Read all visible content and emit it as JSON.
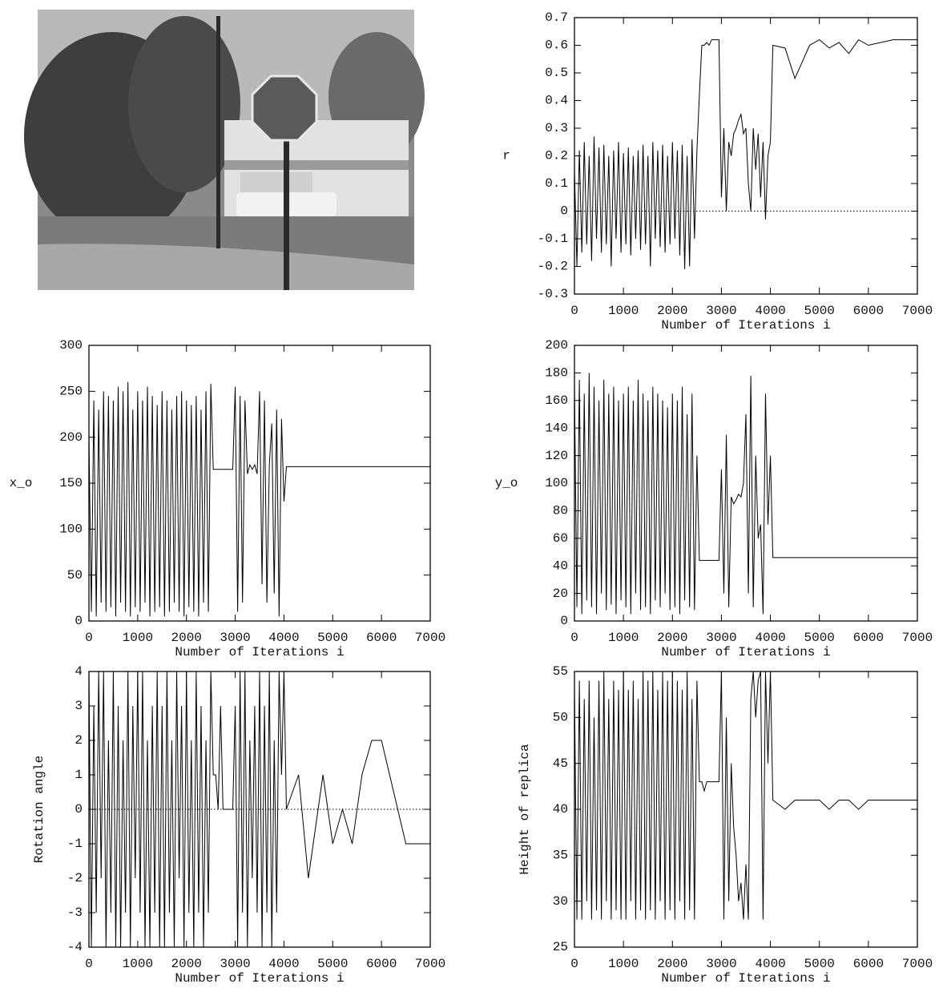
{
  "chart_data": [
    {
      "type": "line",
      "xlabel": "Number of Iterations i",
      "ylabel": "r",
      "zero_line": true,
      "xlim": [
        0,
        7000
      ],
      "xticks": [
        0,
        1000,
        2000,
        3000,
        4000,
        5000,
        6000,
        7000
      ],
      "ylim": [
        -0.3,
        0.7
      ],
      "yticks": [
        -0.3,
        -0.2,
        -0.1,
        0,
        0.1,
        0.2,
        0.3,
        0.4,
        0.5,
        0.6,
        0.7
      ],
      "x": [
        0,
        50,
        100,
        150,
        200,
        250,
        300,
        350,
        400,
        450,
        500,
        550,
        600,
        650,
        700,
        750,
        800,
        850,
        900,
        950,
        1000,
        1050,
        1100,
        1150,
        1200,
        1250,
        1300,
        1350,
        1400,
        1450,
        1500,
        1550,
        1600,
        1650,
        1700,
        1750,
        1800,
        1850,
        1900,
        1950,
        2000,
        2050,
        2100,
        2150,
        2200,
        2250,
        2300,
        2350,
        2400,
        2450,
        2500,
        2550,
        2600,
        2650,
        2700,
        2750,
        2800,
        2850,
        2900,
        2950,
        3000,
        3050,
        3100,
        3150,
        3200,
        3250,
        3300,
        3350,
        3400,
        3450,
        3500,
        3550,
        3600,
        3650,
        3700,
        3750,
        3800,
        3850,
        3900,
        3950,
        4000,
        4050,
        4300,
        4500,
        4800,
        5000,
        5200,
        5400,
        5600,
        5800,
        6000,
        6500,
        7000
      ],
      "series": [
        {
          "color": "#000000",
          "values": [
            0.15,
            -0.2,
            0.22,
            -0.15,
            0.25,
            -0.12,
            0.2,
            -0.18,
            0.27,
            -0.1,
            0.23,
            -0.15,
            0.24,
            -0.12,
            0.2,
            -0.2,
            0.22,
            -0.1,
            0.25,
            -0.15,
            0.21,
            -0.12,
            0.23,
            -0.16,
            0.2,
            -0.1,
            0.22,
            -0.14,
            0.24,
            -0.12,
            0.2,
            -0.2,
            0.25,
            -0.1,
            0.22,
            -0.13,
            0.24,
            -0.15,
            0.2,
            -0.12,
            0.25,
            -0.1,
            0.22,
            -0.16,
            0.24,
            -0.21,
            0.2,
            -0.2,
            0.26,
            -0.1,
            0.22,
            0.42,
            0.6,
            0.6,
            0.61,
            0.6,
            0.62,
            0.62,
            0.62,
            0.62,
            0.05,
            0.3,
            0,
            0.25,
            0.2,
            0.28,
            0.3,
            0.33,
            0.35,
            0.28,
            0.3,
            0.1,
            0,
            0.3,
            0.15,
            0.28,
            0.05,
            0.25,
            -0.03,
            0.2,
            0.25,
            0.6,
            0.59,
            0.48,
            0.6,
            0.62,
            0.59,
            0.61,
            0.57,
            0.62,
            0.6,
            0.62,
            0.62
          ]
        }
      ]
    },
    {
      "type": "line",
      "xlabel": "Number of Iterations i",
      "ylabel": "x_o",
      "xlim": [
        0,
        7000
      ],
      "xticks": [
        0,
        1000,
        2000,
        3000,
        4000,
        5000,
        6000,
        7000
      ],
      "ylim": [
        0,
        300
      ],
      "yticks": [
        0,
        50,
        100,
        150,
        200,
        250,
        300
      ],
      "x": [
        0,
        50,
        100,
        150,
        200,
        250,
        300,
        350,
        400,
        450,
        500,
        550,
        600,
        650,
        700,
        750,
        800,
        850,
        900,
        950,
        1000,
        1050,
        1100,
        1150,
        1200,
        1250,
        1300,
        1350,
        1400,
        1450,
        1500,
        1550,
        1600,
        1650,
        1700,
        1750,
        1800,
        1850,
        1900,
        1950,
        2000,
        2050,
        2100,
        2150,
        2200,
        2250,
        2300,
        2350,
        2400,
        2450,
        2500,
        2550,
        2600,
        2650,
        2700,
        2750,
        2800,
        2850,
        2900,
        2950,
        3000,
        3050,
        3100,
        3150,
        3200,
        3250,
        3300,
        3350,
        3400,
        3450,
        3500,
        3550,
        3600,
        3650,
        3700,
        3750,
        3800,
        3850,
        3900,
        3950,
        4000,
        4050,
        4300,
        4500,
        4800,
        5000,
        5200,
        5400,
        5600,
        5800,
        6000,
        6500,
        7000
      ],
      "series": [
        {
          "color": "#000000",
          "values": [
            200,
            10,
            240,
            5,
            230,
            20,
            250,
            10,
            245,
            15,
            240,
            5,
            255,
            20,
            250,
            10,
            260,
            5,
            230,
            15,
            250,
            10,
            240,
            20,
            255,
            5,
            245,
            10,
            235,
            15,
            250,
            5,
            240,
            10,
            230,
            20,
            245,
            10,
            250,
            5,
            240,
            15,
            235,
            10,
            245,
            5,
            230,
            20,
            250,
            10,
            258,
            165,
            165,
            165,
            165,
            165,
            165,
            165,
            165,
            165,
            255,
            10,
            245,
            20,
            240,
            160,
            170,
            165,
            170,
            160,
            250,
            40,
            240,
            20,
            170,
            215,
            30,
            230,
            5,
            220,
            130,
            168,
            168,
            168,
            168,
            168,
            168,
            168,
            168,
            168,
            168,
            168,
            168
          ]
        }
      ]
    },
    {
      "type": "line",
      "xlabel": "Number of Iterations i",
      "ylabel": "y_o",
      "xlim": [
        0,
        7000
      ],
      "xticks": [
        0,
        1000,
        2000,
        3000,
        4000,
        5000,
        6000,
        7000
      ],
      "ylim": [
        0,
        200
      ],
      "yticks": [
        0,
        20,
        40,
        60,
        80,
        100,
        120,
        140,
        160,
        180,
        200
      ],
      "x": [
        0,
        50,
        100,
        150,
        200,
        250,
        300,
        350,
        400,
        450,
        500,
        550,
        600,
        650,
        700,
        750,
        800,
        850,
        900,
        950,
        1000,
        1050,
        1100,
        1150,
        1200,
        1250,
        1300,
        1350,
        1400,
        1450,
        1500,
        1550,
        1600,
        1650,
        1700,
        1750,
        1800,
        1850,
        1900,
        1950,
        2000,
        2050,
        2100,
        2150,
        2200,
        2250,
        2300,
        2350,
        2400,
        2450,
        2500,
        2550,
        2600,
        2650,
        2700,
        2750,
        2800,
        2850,
        2900,
        2950,
        3000,
        3050,
        3100,
        3150,
        3200,
        3250,
        3300,
        3350,
        3400,
        3450,
        3500,
        3550,
        3600,
        3650,
        3700,
        3750,
        3800,
        3850,
        3900,
        3950,
        4000,
        4050,
        4300,
        4500,
        4800,
        5000,
        5200,
        5400,
        5600,
        5800,
        6000,
        6500,
        7000
      ],
      "series": [
        {
          "color": "#000000",
          "values": [
            170,
            10,
            175,
            5,
            165,
            15,
            180,
            10,
            170,
            5,
            160,
            20,
            175,
            8,
            165,
            12,
            170,
            5,
            160,
            15,
            165,
            10,
            170,
            5,
            160,
            20,
            175,
            8,
            165,
            10,
            160,
            5,
            170,
            15,
            165,
            10,
            160,
            20,
            155,
            8,
            165,
            10,
            160,
            5,
            170,
            15,
            150,
            10,
            165,
            8,
            120,
            44,
            44,
            44,
            44,
            44,
            44,
            44,
            44,
            44,
            110,
            20,
            135,
            10,
            90,
            85,
            88,
            92,
            90,
            100,
            150,
            20,
            178,
            10,
            120,
            60,
            70,
            5,
            165,
            70,
            120,
            46,
            46,
            46,
            46,
            46,
            46,
            46,
            46,
            46,
            46,
            46,
            46
          ]
        }
      ]
    },
    {
      "type": "line",
      "xlabel": "Number of Iterations i",
      "ylabel": "Rotation angle",
      "zero_line": true,
      "xlim": [
        0,
        7000
      ],
      "xticks": [
        0,
        1000,
        2000,
        3000,
        4000,
        5000,
        6000,
        7000
      ],
      "ylim": [
        -4,
        4
      ],
      "yticks": [
        -4,
        -3,
        -2,
        -1,
        0,
        1,
        2,
        3,
        4
      ],
      "x": [
        0,
        50,
        100,
        150,
        200,
        250,
        300,
        350,
        400,
        450,
        500,
        550,
        600,
        650,
        700,
        750,
        800,
        850,
        900,
        950,
        1000,
        1050,
        1100,
        1150,
        1200,
        1250,
        1300,
        1350,
        1400,
        1450,
        1500,
        1550,
        1600,
        1650,
        1700,
        1750,
        1800,
        1850,
        1900,
        1950,
        2000,
        2050,
        2100,
        2150,
        2200,
        2250,
        2300,
        2350,
        2400,
        2450,
        2500,
        2550,
        2600,
        2650,
        2700,
        2750,
        2800,
        2850,
        2900,
        2950,
        3000,
        3050,
        3100,
        3150,
        3200,
        3250,
        3300,
        3350,
        3400,
        3450,
        3500,
        3550,
        3600,
        3650,
        3700,
        3750,
        3800,
        3850,
        3900,
        3950,
        4000,
        4050,
        4300,
        4500,
        4800,
        5000,
        5200,
        5400,
        5600,
        5800,
        6000,
        6500,
        7000
      ],
      "series": [
        {
          "color": "#000000",
          "values": [
            4,
            -4,
            3,
            -3,
            4,
            -2,
            4,
            -4,
            2,
            -3,
            4,
            -4,
            3,
            -4,
            2,
            -3,
            4,
            -4,
            3,
            -2,
            4,
            -3,
            4,
            -4,
            2,
            -4,
            3,
            -3,
            4,
            -4,
            3,
            -4,
            4,
            -3,
            2,
            -4,
            4,
            -2,
            3,
            -4,
            4,
            -3,
            2,
            -4,
            4,
            -3,
            3,
            -4,
            2,
            -3,
            4,
            1,
            1,
            0,
            3,
            0,
            0,
            0,
            0,
            0,
            3,
            -4,
            4,
            -3,
            4,
            -4,
            2,
            -2,
            3,
            -3,
            4,
            -4,
            3,
            -3,
            4,
            -4,
            2,
            -3,
            4,
            1,
            4,
            0,
            1,
            -2,
            1,
            -1,
            0,
            -1,
            1,
            2,
            2,
            -1,
            -1
          ]
        }
      ]
    },
    {
      "type": "line",
      "xlabel": "Number of Iterations i",
      "ylabel": "Height of replica",
      "xlim": [
        0,
        7000
      ],
      "xticks": [
        0,
        1000,
        2000,
        3000,
        4000,
        5000,
        6000,
        7000
      ],
      "ylim": [
        25,
        55
      ],
      "yticks": [
        25,
        30,
        35,
        40,
        45,
        50,
        55
      ],
      "x": [
        0,
        50,
        100,
        150,
        200,
        250,
        300,
        350,
        400,
        450,
        500,
        550,
        600,
        650,
        700,
        750,
        800,
        850,
        900,
        950,
        1000,
        1050,
        1100,
        1150,
        1200,
        1250,
        1300,
        1350,
        1400,
        1450,
        1500,
        1550,
        1600,
        1650,
        1700,
        1750,
        1800,
        1850,
        1900,
        1950,
        2000,
        2050,
        2100,
        2150,
        2200,
        2250,
        2300,
        2350,
        2400,
        2450,
        2500,
        2550,
        2600,
        2650,
        2700,
        2750,
        2800,
        2850,
        2900,
        2950,
        3000,
        3050,
        3100,
        3150,
        3200,
        3250,
        3300,
        3350,
        3400,
        3450,
        3500,
        3550,
        3600,
        3650,
        3700,
        3750,
        3800,
        3850,
        3900,
        3950,
        4000,
        4050,
        4300,
        4500,
        4800,
        5000,
        5200,
        5400,
        5600,
        5800,
        6000,
        6500,
        7000
      ],
      "series": [
        {
          "color": "#000000",
          "values": [
            53,
            28,
            54,
            28,
            52,
            30,
            54,
            28,
            50,
            29,
            54,
            28,
            55,
            30,
            52,
            28,
            54,
            29,
            53,
            28,
            55,
            28,
            53,
            30,
            54,
            28,
            52,
            29,
            55,
            28,
            54,
            29,
            55,
            28,
            53,
            30,
            55,
            28,
            54,
            29,
            55,
            28,
            54,
            30,
            53,
            28,
            55,
            29,
            52,
            28,
            54,
            43,
            43,
            42,
            43,
            43,
            43,
            43,
            43,
            43,
            55,
            28,
            50,
            30,
            45,
            38,
            35,
            30,
            32,
            28,
            34,
            28,
            52,
            55,
            50,
            54,
            55,
            28,
            55,
            45,
            55,
            41,
            40,
            41,
            41,
            41,
            40,
            41,
            41,
            40,
            41,
            41,
            41
          ]
        }
      ]
    }
  ]
}
